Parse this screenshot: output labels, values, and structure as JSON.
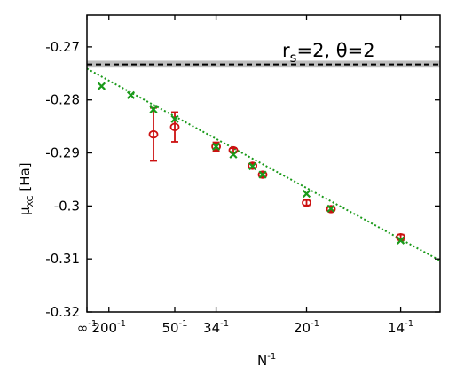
{
  "chart_data": {
    "type": "scatter",
    "title": "",
    "annotation": {
      "text": "r_s=2, θ=2",
      "parts": {
        "r": "r",
        "sub_s": "s",
        "rest": "=2, θ=2"
      }
    },
    "xlabel": {
      "base": "N",
      "sup": "-1"
    },
    "ylabel": {
      "mu": "μ",
      "sub": "XC",
      "unit": " [Ha]"
    },
    "xlim": [
      0,
      0.0804
    ],
    "ylim": [
      -0.32,
      -0.264
    ],
    "x_ticks": [
      {
        "value": 0,
        "base": "∞",
        "sup": "-1"
      },
      {
        "value": 0.005,
        "base": "200",
        "sup": "-1"
      },
      {
        "value": 0.02,
        "base": "50",
        "sup": "-1"
      },
      {
        "value": 0.02941,
        "base": "34",
        "sup": "-1"
      },
      {
        "value": 0.05,
        "base": "20",
        "sup": "-1"
      },
      {
        "value": 0.07143,
        "base": "14",
        "sup": "-1"
      }
    ],
    "y_ticks": [
      {
        "value": -0.27,
        "label": "-0.27"
      },
      {
        "value": -0.28,
        "label": "-0.28"
      },
      {
        "value": -0.29,
        "label": "-0.29"
      },
      {
        "value": -0.3,
        "label": "-0.3"
      },
      {
        "value": -0.31,
        "label": "-0.31"
      },
      {
        "value": -0.32,
        "label": "-0.32"
      }
    ],
    "reference_line": {
      "y": -0.2733,
      "band": [
        -0.2739,
        -0.2726
      ],
      "style": "dashed",
      "color": "#000000",
      "band_color": "#c0c0c0"
    },
    "fit_line": {
      "x0": 0,
      "y0": -0.2741,
      "slope": -0.4503,
      "style": "dotted",
      "color": "#1a9a1a"
    },
    "series": [
      {
        "marker": "circle",
        "color": "#cc1111",
        "points": [
          {
            "x": 0.01515,
            "y": -0.2865,
            "err": 0.005
          },
          {
            "x": 0.02,
            "y": -0.2851,
            "err": 0.0028
          },
          {
            "x": 0.02941,
            "y": -0.2888,
            "err": 0.0008
          },
          {
            "x": 0.03333,
            "y": -0.2895,
            "err": 0.0004
          },
          {
            "x": 0.0377,
            "y": -0.2924,
            "err": 0.0004
          },
          {
            "x": 0.04,
            "y": -0.2941,
            "err": 0.0004
          },
          {
            "x": 0.05,
            "y": -0.2994,
            "err": 0.0005
          },
          {
            "x": 0.05556,
            "y": -0.3006,
            "err": 0.0004
          },
          {
            "x": 0.07143,
            "y": -0.3059,
            "err": 0.0005
          }
        ]
      },
      {
        "marker": "x",
        "color": "#1a9a1a",
        "points": [
          {
            "x": 0.00333,
            "y": -0.2774
          },
          {
            "x": 0.01,
            "y": -0.2791
          },
          {
            "x": 0.01515,
            "y": -0.2818
          },
          {
            "x": 0.02,
            "y": -0.2836
          },
          {
            "x": 0.02941,
            "y": -0.2888
          },
          {
            "x": 0.03333,
            "y": -0.2903
          },
          {
            "x": 0.0377,
            "y": -0.2925
          },
          {
            "x": 0.04,
            "y": -0.2941
          },
          {
            "x": 0.05,
            "y": -0.2977
          },
          {
            "x": 0.05556,
            "y": -0.3005
          },
          {
            "x": 0.07143,
            "y": -0.3065
          }
        ]
      }
    ]
  }
}
